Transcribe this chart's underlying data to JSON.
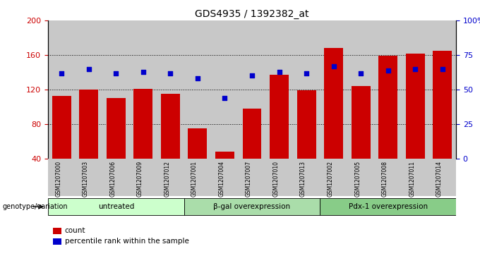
{
  "title": "GDS4935 / 1392382_at",
  "samples": [
    "GSM1207000",
    "GSM1207003",
    "GSM1207006",
    "GSM1207009",
    "GSM1207012",
    "GSM1207001",
    "GSM1207004",
    "GSM1207007",
    "GSM1207010",
    "GSM1207013",
    "GSM1207002",
    "GSM1207005",
    "GSM1207008",
    "GSM1207011",
    "GSM1207014"
  ],
  "counts": [
    113,
    120,
    110,
    121,
    115,
    75,
    48,
    98,
    137,
    119,
    168,
    124,
    159,
    162,
    165
  ],
  "percentiles": [
    62,
    65,
    62,
    63,
    62,
    58,
    44,
    60,
    63,
    62,
    67,
    62,
    64,
    65,
    65
  ],
  "groups": [
    {
      "label": "untreated",
      "start": 0,
      "end": 5,
      "color": "#ccffcc"
    },
    {
      "label": "β-gal overexpression",
      "start": 5,
      "end": 10,
      "color": "#aaddaa"
    },
    {
      "label": "Pdx-1 overexpression",
      "start": 10,
      "end": 15,
      "color": "#88cc88"
    }
  ],
  "bar_color": "#cc0000",
  "dot_color": "#0000cc",
  "ylim_left": [
    40,
    200
  ],
  "ylim_right": [
    0,
    100
  ],
  "yticks_left": [
    40,
    80,
    120,
    160,
    200
  ],
  "yticks_right": [
    0,
    25,
    50,
    75,
    100
  ],
  "col_bg_color": "#c8c8c8",
  "bar_width": 0.7,
  "title_fontsize": 10
}
